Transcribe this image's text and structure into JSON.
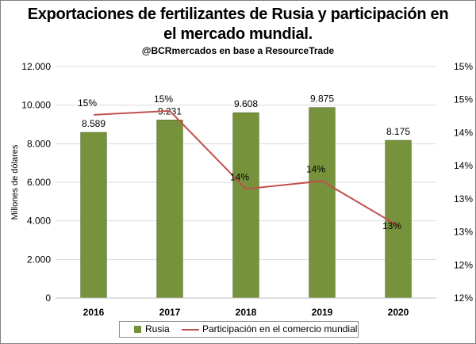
{
  "title_line1": "Exportaciones de fertilizantes de Rusia y participación en",
  "title_line2": "el mercado mundial.",
  "subtitle": "@BCRmercados  en base a ResourceTrade",
  "chart_data": {
    "type": "bar",
    "categories": [
      "2016",
      "2017",
      "2018",
      "2019",
      "2020"
    ],
    "series": [
      {
        "name": "Rusia",
        "type": "bar",
        "axis": "left",
        "values": [
          8589,
          9231,
          9608,
          9875,
          8175
        ],
        "labels": [
          "8.589",
          "9.231",
          "9.608",
          "9.875",
          "8.175"
        ],
        "color": "#76933c"
      },
      {
        "name": "Participación en el comercio mundial",
        "type": "line",
        "axis": "right",
        "values": [
          14.77,
          14.83,
          13.65,
          13.77,
          13.09
        ],
        "labels": [
          "15%",
          "15%",
          "14%",
          "14%",
          "13%"
        ],
        "color": "#c0504d"
      }
    ],
    "ylabel": "Millones de dólares",
    "ylim": [
      0,
      12000
    ],
    "yticks": [
      "0",
      "2.000",
      "4.000",
      "6.000",
      "8.000",
      "10.000",
      "12.000"
    ],
    "y2lim": [
      12,
      15.5
    ],
    "y2ticks": [
      "12%",
      "12%",
      "13%",
      "13%",
      "14%",
      "14%",
      "15%",
      "15%"
    ],
    "grid": true,
    "legend_position": "bottom"
  }
}
